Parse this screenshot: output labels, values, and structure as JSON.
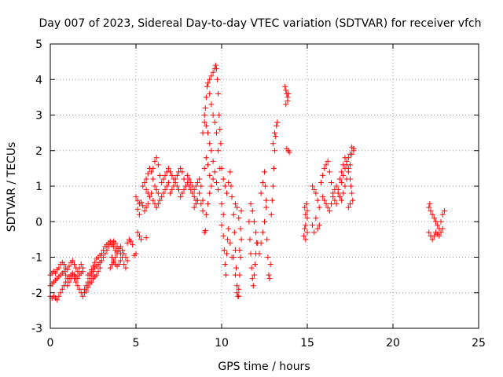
{
  "chart_data": {
    "type": "scatter",
    "title": "Day 007 of 2023, Sidereal Day-to-day VTEC variation (SDTVAR) for receiver vfch",
    "xlabel": "GPS time / hours",
    "ylabel": "SDTVAR / TECUs",
    "xlim": [
      0,
      25
    ],
    "ylim": [
      -3,
      5
    ],
    "x_ticks": [
      "0",
      "5",
      "10",
      "15",
      "20",
      "25"
    ],
    "y_ticks": [
      "-3",
      "-2",
      "-1",
      "0",
      "1",
      "2",
      "3",
      "4",
      "5"
    ],
    "grid": true,
    "marker": "plus",
    "color": "#ff0000",
    "points": [
      [
        0.0,
        -1.5
      ],
      [
        0.1,
        -1.45
      ],
      [
        0.2,
        -1.4
      ],
      [
        0.3,
        -1.45
      ],
      [
        0.4,
        -1.35
      ],
      [
        0.5,
        -1.3
      ],
      [
        0.6,
        -1.2
      ],
      [
        0.7,
        -1.15
      ],
      [
        0.8,
        -1.2
      ],
      [
        0.9,
        -1.3
      ],
      [
        1.0,
        -1.35
      ],
      [
        1.1,
        -1.25
      ],
      [
        1.2,
        -1.15
      ],
      [
        1.3,
        -1.1
      ],
      [
        1.4,
        -1.2
      ],
      [
        1.5,
        -1.3
      ],
      [
        1.6,
        -1.4
      ],
      [
        1.7,
        -1.3
      ],
      [
        1.8,
        -1.2
      ],
      [
        1.9,
        -1.3
      ],
      [
        0.0,
        -1.8
      ],
      [
        0.1,
        -1.75
      ],
      [
        0.2,
        -1.7
      ],
      [
        0.3,
        -1.65
      ],
      [
        0.4,
        -1.6
      ],
      [
        0.5,
        -1.55
      ],
      [
        0.6,
        -1.5
      ],
      [
        0.7,
        -1.45
      ],
      [
        0.8,
        -1.4
      ],
      [
        0.9,
        -1.5
      ],
      [
        1.0,
        -1.6
      ],
      [
        1.1,
        -1.55
      ],
      [
        1.2,
        -1.5
      ],
      [
        1.3,
        -1.45
      ],
      [
        1.4,
        -1.5
      ],
      [
        1.5,
        -1.55
      ],
      [
        1.6,
        -1.6
      ],
      [
        1.7,
        -1.5
      ],
      [
        1.8,
        -1.45
      ],
      [
        1.9,
        -1.4
      ],
      [
        0.0,
        -2.1
      ],
      [
        0.1,
        -2.15
      ],
      [
        0.2,
        -2.1
      ],
      [
        0.3,
        -2.15
      ],
      [
        0.4,
        -2.2
      ],
      [
        0.5,
        -2.1
      ],
      [
        0.6,
        -2.0
      ],
      [
        0.7,
        -1.9
      ],
      [
        0.8,
        -1.8
      ],
      [
        0.9,
        -1.7
      ],
      [
        1.0,
        -1.8
      ],
      [
        1.1,
        -1.7
      ],
      [
        1.2,
        -1.6
      ],
      [
        1.3,
        -1.5
      ],
      [
        1.4,
        -1.6
      ],
      [
        1.5,
        -1.7
      ],
      [
        1.6,
        -1.8
      ],
      [
        1.7,
        -1.9
      ],
      [
        1.8,
        -2.0
      ],
      [
        1.9,
        -2.1
      ],
      [
        2.0,
        -1.9
      ],
      [
        2.1,
        -1.8
      ],
      [
        2.2,
        -1.7
      ],
      [
        2.3,
        -1.6
      ],
      [
        2.4,
        -1.5
      ],
      [
        2.5,
        -1.4
      ],
      [
        2.6,
        -1.3
      ],
      [
        2.7,
        -1.25
      ],
      [
        2.8,
        -1.2
      ],
      [
        2.9,
        -1.15
      ],
      [
        2.0,
        -2.0
      ],
      [
        2.1,
        -1.95
      ],
      [
        2.2,
        -1.85
      ],
      [
        2.3,
        -1.75
      ],
      [
        2.4,
        -1.7
      ],
      [
        2.5,
        -1.6
      ],
      [
        2.6,
        -1.55
      ],
      [
        2.7,
        -1.5
      ],
      [
        2.8,
        -1.4
      ],
      [
        2.9,
        -1.3
      ],
      [
        2.2,
        -1.5
      ],
      [
        2.3,
        -1.45
      ],
      [
        2.4,
        -1.35
      ],
      [
        2.5,
        -1.25
      ],
      [
        2.6,
        -1.15
      ],
      [
        2.7,
        -1.05
      ],
      [
        2.8,
        -1.0
      ],
      [
        2.9,
        -0.95
      ],
      [
        3.0,
        -0.9
      ],
      [
        3.1,
        -0.8
      ],
      [
        3.0,
        -1.1
      ],
      [
        3.1,
        -1.0
      ],
      [
        3.2,
        -0.9
      ],
      [
        3.3,
        -0.8
      ],
      [
        3.4,
        -0.7
      ],
      [
        3.5,
        -0.6
      ],
      [
        3.6,
        -0.65
      ],
      [
        3.7,
        -0.7
      ],
      [
        3.8,
        -0.8
      ],
      [
        3.9,
        -0.9
      ],
      [
        3.2,
        -0.7
      ],
      [
        3.3,
        -0.65
      ],
      [
        3.4,
        -0.6
      ],
      [
        3.5,
        -0.55
      ],
      [
        3.6,
        -0.6
      ],
      [
        3.7,
        -0.55
      ],
      [
        3.8,
        -0.6
      ],
      [
        3.9,
        -0.7
      ],
      [
        4.0,
        -0.8
      ],
      [
        4.1,
        -0.9
      ],
      [
        3.6,
        -1.0
      ],
      [
        3.7,
        -1.1
      ],
      [
        3.8,
        -1.2
      ],
      [
        3.9,
        -1.25
      ],
      [
        4.0,
        -1.2
      ],
      [
        4.1,
        -1.1
      ],
      [
        4.2,
        -1.0
      ],
      [
        4.3,
        -0.9
      ],
      [
        4.4,
        -1.0
      ],
      [
        4.5,
        -1.1
      ],
      [
        3.5,
        -1.3
      ],
      [
        3.6,
        -1.2
      ],
      [
        3.7,
        -1.15
      ],
      [
        3.8,
        -1.0
      ],
      [
        3.9,
        -0.85
      ],
      [
        4.0,
        -0.75
      ],
      [
        4.1,
        -0.7
      ],
      [
        4.2,
        -0.8
      ],
      [
        4.3,
        -1.2
      ],
      [
        4.4,
        -1.3
      ],
      [
        4.5,
        -0.6
      ],
      [
        4.6,
        -0.5
      ],
      [
        4.7,
        -0.55
      ],
      [
        4.8,
        -0.65
      ],
      [
        4.9,
        -0.95
      ],
      [
        5.0,
        -0.9
      ],
      [
        5.2,
        -0.4
      ],
      [
        5.3,
        -0.5
      ],
      [
        5.6,
        -0.45
      ],
      [
        5.1,
        -0.3
      ],
      [
        5.0,
        0.7
      ],
      [
        5.1,
        0.6
      ],
      [
        5.2,
        0.5
      ],
      [
        5.3,
        0.55
      ],
      [
        5.4,
        0.45
      ],
      [
        5.5,
        0.3
      ],
      [
        5.6,
        0.4
      ],
      [
        5.7,
        0.5
      ],
      [
        5.2,
        0.2
      ],
      [
        5.1,
        0.35
      ],
      [
        5.4,
        1.0
      ],
      [
        5.5,
        1.1
      ],
      [
        5.6,
        1.2
      ],
      [
        5.7,
        1.35
      ],
      [
        5.8,
        1.5
      ],
      [
        5.9,
        1.4
      ],
      [
        6.0,
        1.2
      ],
      [
        6.1,
        1.0
      ],
      [
        6.2,
        0.9
      ],
      [
        6.3,
        0.8
      ],
      [
        5.6,
        0.9
      ],
      [
        5.7,
        0.8
      ],
      [
        5.8,
        0.7
      ],
      [
        5.9,
        0.8
      ],
      [
        6.0,
        1.5
      ],
      [
        6.1,
        1.7
      ],
      [
        6.2,
        1.8
      ],
      [
        6.3,
        1.6
      ],
      [
        6.4,
        1.3
      ],
      [
        6.5,
        1.1
      ],
      [
        6.0,
        0.6
      ],
      [
        6.1,
        0.5
      ],
      [
        6.2,
        0.4
      ],
      [
        6.3,
        0.5
      ],
      [
        6.4,
        0.6
      ],
      [
        6.5,
        0.7
      ],
      [
        6.6,
        0.8
      ],
      [
        6.7,
        0.9
      ],
      [
        6.8,
        1.0
      ],
      [
        6.9,
        1.1
      ],
      [
        6.6,
        1.2
      ],
      [
        6.7,
        1.3
      ],
      [
        6.8,
        1.4
      ],
      [
        6.9,
        1.5
      ],
      [
        7.0,
        1.4
      ],
      [
        7.1,
        1.3
      ],
      [
        7.2,
        1.2
      ],
      [
        7.3,
        1.1
      ],
      [
        7.4,
        1.0
      ],
      [
        7.5,
        0.9
      ],
      [
        7.0,
        0.8
      ],
      [
        7.1,
        0.9
      ],
      [
        7.2,
        1.0
      ],
      [
        7.3,
        1.2
      ],
      [
        7.4,
        1.3
      ],
      [
        7.5,
        1.4
      ],
      [
        7.6,
        1.5
      ],
      [
        7.7,
        1.4
      ],
      [
        7.8,
        1.2
      ],
      [
        7.9,
        1.0
      ],
      [
        7.6,
        0.7
      ],
      [
        7.7,
        0.8
      ],
      [
        7.8,
        0.9
      ],
      [
        7.9,
        1.0
      ],
      [
        8.0,
        1.1
      ],
      [
        8.1,
        1.0
      ],
      [
        8.2,
        0.9
      ],
      [
        8.3,
        0.8
      ],
      [
        8.4,
        0.7
      ],
      [
        8.5,
        0.6
      ],
      [
        8.0,
        1.3
      ],
      [
        8.1,
        1.2
      ],
      [
        8.2,
        1.1
      ],
      [
        8.3,
        1.0
      ],
      [
        8.4,
        0.9
      ],
      [
        8.5,
        1.0
      ],
      [
        8.6,
        1.1
      ],
      [
        8.7,
        1.2
      ],
      [
        8.8,
        1.0
      ],
      [
        8.9,
        0.6
      ],
      [
        8.4,
        0.4
      ],
      [
        8.5,
        0.5
      ],
      [
        8.6,
        0.6
      ],
      [
        8.7,
        0.8
      ],
      [
        8.8,
        0.5
      ],
      [
        8.9,
        0.3
      ],
      [
        9.0,
        1.5
      ],
      [
        9.1,
        1.8
      ],
      [
        9.2,
        1.6
      ],
      [
        9.3,
        1.3
      ],
      [
        9.0,
        -0.3
      ],
      [
        9.05,
        -0.25
      ],
      [
        9.1,
        0.2
      ],
      [
        9.2,
        0.5
      ],
      [
        9.3,
        0.8
      ],
      [
        9.4,
        1.0
      ],
      [
        9.5,
        1.2
      ],
      [
        9.6,
        1.4
      ],
      [
        9.7,
        1.1
      ],
      [
        9.8,
        0.9
      ],
      [
        8.9,
        2.5
      ],
      [
        9.0,
        2.8
      ],
      [
        9.05,
        3.2
      ],
      [
        9.1,
        3.5
      ],
      [
        9.15,
        3.8
      ],
      [
        9.2,
        3.9
      ],
      [
        9.3,
        4.0
      ],
      [
        9.4,
        4.1
      ],
      [
        9.5,
        4.2
      ],
      [
        9.6,
        4.3
      ],
      [
        9.65,
        4.4
      ],
      [
        9.7,
        4.3
      ],
      [
        9.75,
        4.0
      ],
      [
        9.8,
        3.6
      ],
      [
        9.85,
        3.0
      ],
      [
        9.9,
        2.6
      ],
      [
        9.95,
        2.2
      ],
      [
        9.3,
        3.6
      ],
      [
        9.4,
        3.3
      ],
      [
        9.5,
        3.0
      ],
      [
        9.0,
        3.0
      ],
      [
        9.1,
        2.7
      ],
      [
        9.2,
        2.5
      ],
      [
        9.3,
        2.2
      ],
      [
        9.4,
        2.0
      ],
      [
        9.5,
        1.7
      ],
      [
        9.6,
        2.8
      ],
      [
        9.7,
        2.5
      ],
      [
        9.8,
        2.0
      ],
      [
        9.9,
        1.5
      ],
      [
        10.0,
        1.5
      ],
      [
        10.1,
        1.2
      ],
      [
        10.2,
        1.0
      ],
      [
        10.3,
        0.8
      ],
      [
        10.4,
        1.1
      ],
      [
        10.5,
        1.4
      ],
      [
        10.55,
        1.0
      ],
      [
        10.6,
        0.7
      ],
      [
        10.0,
        0.5
      ],
      [
        10.1,
        0.2
      ],
      [
        10.0,
        -0.1
      ],
      [
        10.1,
        -0.4
      ],
      [
        10.15,
        -0.8
      ],
      [
        10.2,
        -1.2
      ],
      [
        10.25,
        -1.5
      ],
      [
        10.3,
        -0.9
      ],
      [
        10.35,
        -0.5
      ],
      [
        10.4,
        -0.2
      ],
      [
        10.5,
        -0.6
      ],
      [
        10.6,
        -1.0
      ],
      [
        10.7,
        0.2
      ],
      [
        10.75,
        -0.3
      ],
      [
        10.8,
        -0.8
      ],
      [
        10.85,
        -1.3
      ],
      [
        10.9,
        -1.8
      ],
      [
        10.95,
        -2.1
      ],
      [
        11.0,
        -1.9
      ],
      [
        11.05,
        -1.5
      ],
      [
        11.1,
        -1.0
      ],
      [
        11.15,
        -0.5
      ],
      [
        10.7,
        -1.0
      ],
      [
        10.8,
        -1.5
      ],
      [
        10.9,
        -2.0
      ],
      [
        11.0,
        -2.1
      ],
      [
        11.05,
        -0.8
      ],
      [
        11.1,
        -0.2
      ],
      [
        11.15,
        0.3
      ],
      [
        10.8,
        0.5
      ],
      [
        10.9,
        0.4
      ],
      [
        11.0,
        0.1
      ],
      [
        11.6,
        0.0
      ],
      [
        11.65,
        -0.5
      ],
      [
        11.7,
        -0.9
      ],
      [
        11.75,
        -1.3
      ],
      [
        11.8,
        -1.6
      ],
      [
        11.85,
        -1.8
      ],
      [
        11.9,
        -1.5
      ],
      [
        11.95,
        -1.2
      ],
      [
        12.0,
        -0.9
      ],
      [
        12.05,
        -0.6
      ],
      [
        11.7,
        0.5
      ],
      [
        11.8,
        0.3
      ],
      [
        11.9,
        0.0
      ],
      [
        12.0,
        -0.3
      ],
      [
        12.1,
        -0.6
      ],
      [
        12.2,
        -0.9
      ],
      [
        12.3,
        -0.6
      ],
      [
        12.4,
        -0.3
      ],
      [
        12.5,
        0.0
      ],
      [
        12.6,
        0.4
      ],
      [
        12.3,
        0.8
      ],
      [
        12.4,
        1.1
      ],
      [
        12.5,
        1.4
      ],
      [
        12.55,
        1.0
      ],
      [
        12.6,
        0.6
      ],
      [
        12.65,
        -0.5
      ],
      [
        12.7,
        -1.0
      ],
      [
        12.75,
        -1.5
      ],
      [
        12.8,
        -1.6
      ],
      [
        12.85,
        -1.2
      ],
      [
        12.9,
        0.2
      ],
      [
        12.95,
        0.6
      ],
      [
        13.0,
        1.0
      ],
      [
        13.05,
        1.5
      ],
      [
        13.1,
        2.0
      ],
      [
        13.15,
        2.4
      ],
      [
        13.2,
        2.7
      ],
      [
        13.25,
        2.8
      ],
      [
        13.0,
        2.2
      ],
      [
        13.1,
        2.5
      ],
      [
        13.7,
        3.8
      ],
      [
        13.75,
        3.7
      ],
      [
        13.8,
        3.6
      ],
      [
        13.85,
        3.5
      ],
      [
        13.9,
        2.0
      ],
      [
        13.95,
        1.95
      ],
      [
        13.8,
        2.05
      ],
      [
        13.85,
        3.4
      ],
      [
        13.75,
        3.3
      ],
      [
        13.9,
        3.6
      ],
      [
        14.8,
        -0.4
      ],
      [
        14.9,
        -0.5
      ],
      [
        15.0,
        -0.3
      ],
      [
        14.85,
        0.4
      ],
      [
        14.9,
        0.2
      ],
      [
        14.95,
        0.5
      ],
      [
        15.0,
        0.3
      ],
      [
        14.9,
        -0.1
      ],
      [
        15.0,
        0.1
      ],
      [
        14.85,
        -0.2
      ],
      [
        15.3,
        -0.1
      ],
      [
        15.4,
        -0.3
      ],
      [
        15.5,
        0.1
      ],
      [
        15.6,
        -0.2
      ],
      [
        15.7,
        -0.1
      ],
      [
        15.3,
        1.0
      ],
      [
        15.4,
        0.9
      ],
      [
        15.5,
        0.8
      ],
      [
        15.6,
        0.6
      ],
      [
        15.7,
        0.4
      ],
      [
        15.8,
        1.1
      ],
      [
        15.9,
        1.3
      ],
      [
        16.0,
        1.5
      ],
      [
        16.1,
        1.6
      ],
      [
        16.2,
        1.7
      ],
      [
        16.3,
        1.4
      ],
      [
        16.4,
        1.1
      ],
      [
        16.5,
        0.8
      ],
      [
        16.6,
        0.6
      ],
      [
        16.7,
        0.5
      ],
      [
        15.9,
        0.7
      ],
      [
        16.0,
        0.6
      ],
      [
        16.1,
        0.5
      ],
      [
        16.2,
        0.4
      ],
      [
        16.3,
        0.3
      ],
      [
        16.4,
        0.5
      ],
      [
        16.5,
        0.7
      ],
      [
        16.6,
        0.9
      ],
      [
        16.7,
        1.0
      ],
      [
        16.8,
        0.9
      ],
      [
        16.9,
        1.2
      ],
      [
        17.0,
        1.4
      ],
      [
        17.1,
        1.6
      ],
      [
        17.2,
        1.8
      ],
      [
        17.3,
        1.7
      ],
      [
        17.4,
        1.5
      ],
      [
        17.5,
        1.2
      ],
      [
        17.55,
        1.0
      ],
      [
        17.6,
        0.8
      ],
      [
        17.65,
        0.6
      ],
      [
        16.8,
        0.8
      ],
      [
        16.9,
        0.7
      ],
      [
        17.0,
        0.6
      ],
      [
        17.1,
        0.8
      ],
      [
        17.2,
        1.0
      ],
      [
        17.3,
        1.2
      ],
      [
        17.4,
        1.4
      ],
      [
        17.5,
        1.6
      ],
      [
        17.6,
        1.9
      ],
      [
        17.7,
        2.0
      ],
      [
        17.0,
        1.1
      ],
      [
        17.1,
        1.3
      ],
      [
        17.2,
        1.5
      ],
      [
        17.3,
        1.6
      ],
      [
        17.4,
        1.8
      ],
      [
        17.5,
        1.9
      ],
      [
        17.6,
        2.1
      ],
      [
        17.7,
        2.05
      ],
      [
        17.4,
        0.4
      ],
      [
        17.5,
        0.5
      ],
      [
        22.1,
        0.4
      ],
      [
        22.2,
        0.3
      ],
      [
        22.3,
        0.2
      ],
      [
        22.4,
        0.1
      ],
      [
        22.5,
        0.0
      ],
      [
        22.6,
        -0.1
      ],
      [
        22.7,
        -0.2
      ],
      [
        22.8,
        0.0
      ],
      [
        22.9,
        0.2
      ],
      [
        23.0,
        0.3
      ],
      [
        22.1,
        -0.3
      ],
      [
        22.2,
        -0.4
      ],
      [
        22.3,
        -0.5
      ],
      [
        22.4,
        -0.4
      ],
      [
        22.5,
        -0.3
      ],
      [
        22.6,
        -0.35
      ],
      [
        22.7,
        -0.4
      ],
      [
        22.8,
        -0.3
      ],
      [
        22.9,
        -0.2
      ],
      [
        22.15,
        0.5
      ]
    ]
  }
}
